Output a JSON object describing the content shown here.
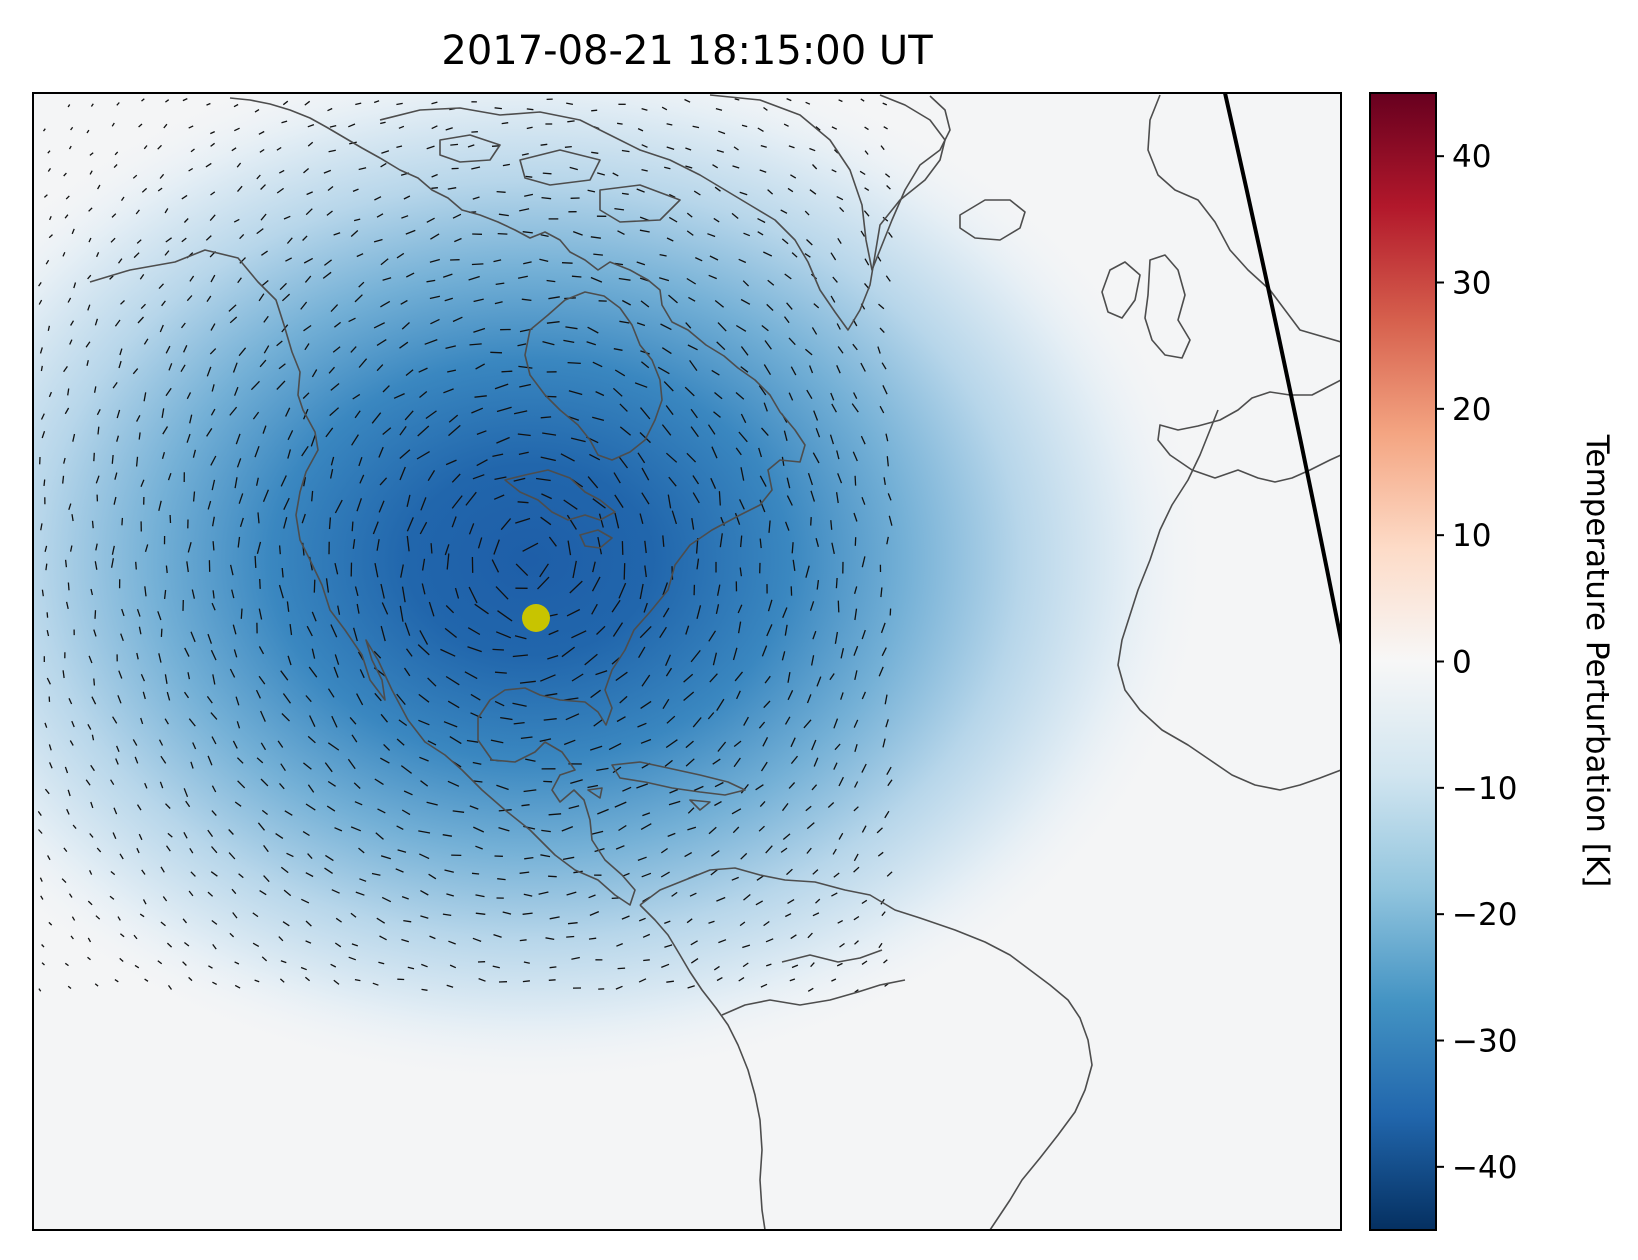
{
  "title": "2017-08-21 18:15:00 UT",
  "colorbar": {
    "label": "Temperature Perturbation [K]",
    "range": [
      -45,
      45
    ],
    "ticks": [
      {
        "value": 40,
        "label": "40"
      },
      {
        "value": 30,
        "label": "30"
      },
      {
        "value": 20,
        "label": "20"
      },
      {
        "value": 10,
        "label": "10"
      },
      {
        "value": 0,
        "label": "0"
      },
      {
        "value": -10,
        "label": "−10"
      },
      {
        "value": -20,
        "label": "−20"
      },
      {
        "value": -30,
        "label": "−30"
      },
      {
        "value": -40,
        "label": "−40"
      }
    ],
    "colormap": "RdBu_r",
    "colors": [
      "#053061",
      "#2166ac",
      "#4393c3",
      "#92c5de",
      "#d1e5f0",
      "#f7f7f7",
      "#fddbc7",
      "#f4a582",
      "#d6604d",
      "#b2182b",
      "#67001f"
    ]
  },
  "map": {
    "region": "North America, North Atlantic, Western Europe and Africa, South America",
    "field": "temperature perturbation with wind vectors",
    "minimum_perturbation_K": -45,
    "coastline_color": "#4d4d4d",
    "marker_color": "#c8c400",
    "terminator_color": "#000000"
  }
}
